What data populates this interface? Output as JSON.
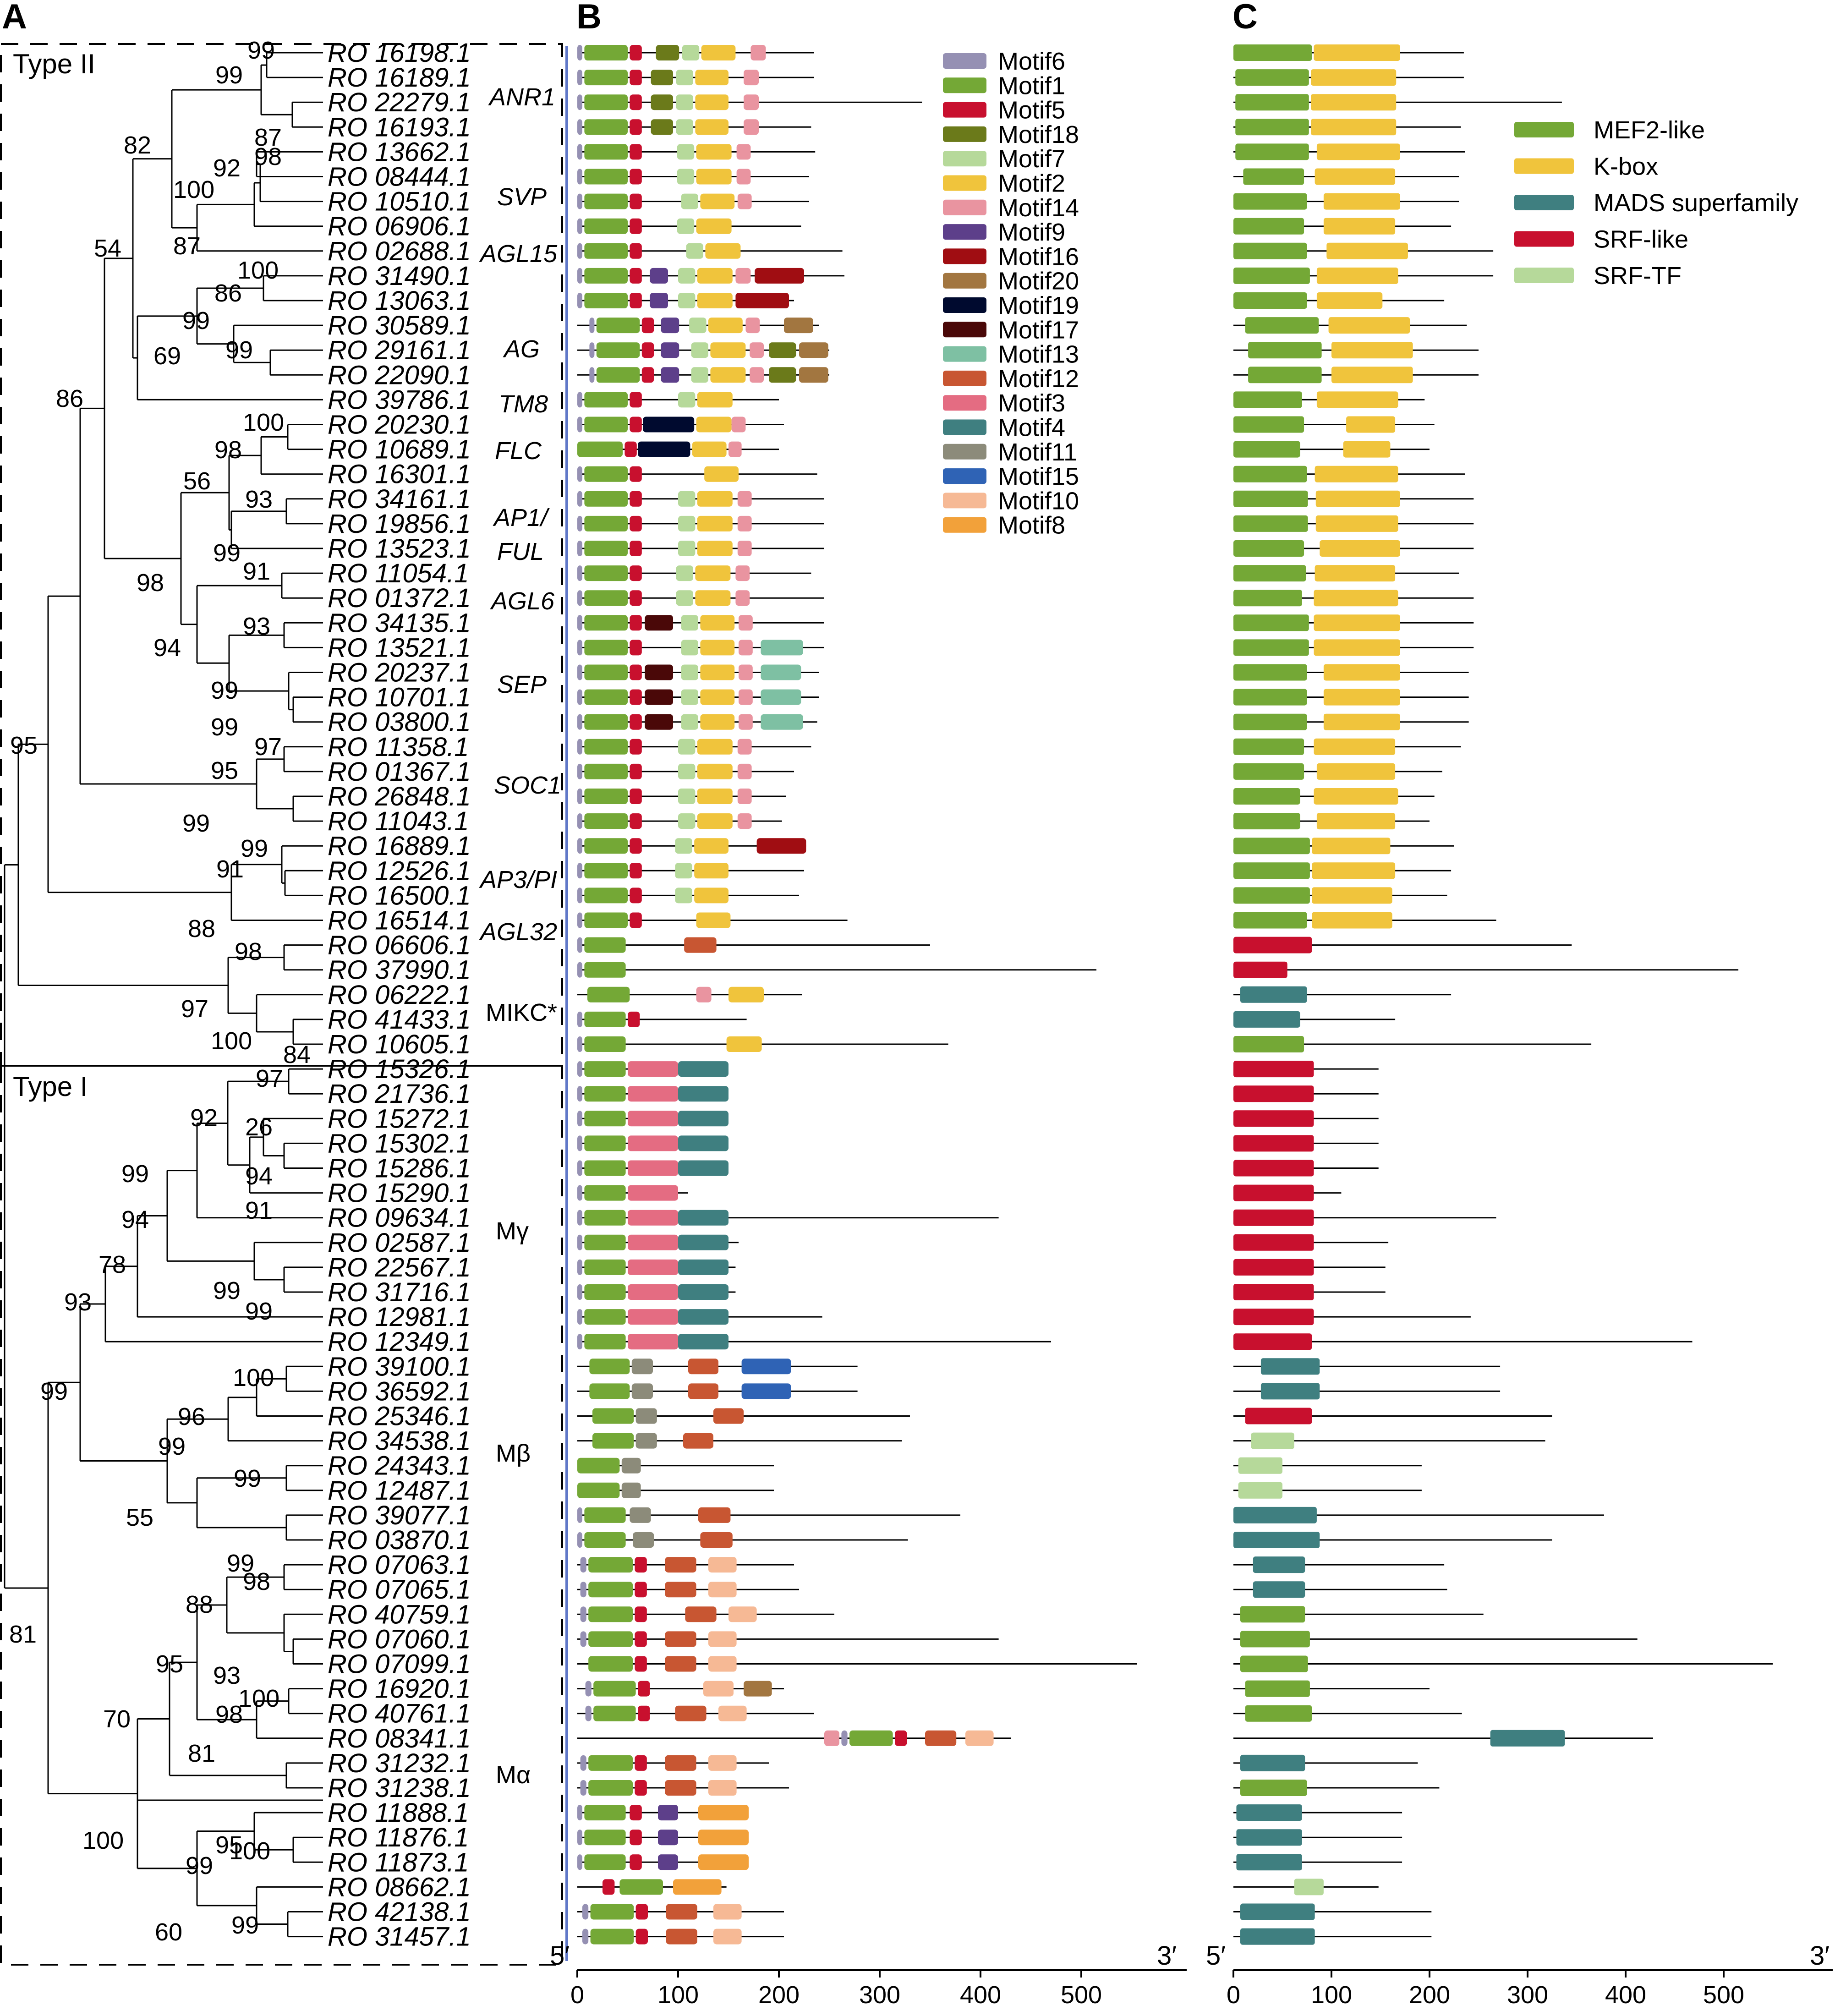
{
  "panels": {
    "a": "A",
    "b": "B",
    "c": "C"
  },
  "types": {
    "type2": "Type II",
    "type1": "Type I"
  },
  "genes": [
    "RO 16198.1",
    "RO 16189.1",
    "RO 22279.1",
    "RO 16193.1",
    "RO 13662.1",
    "RO 08444.1",
    "RO 10510.1",
    "RO 06906.1",
    "RO 02688.1",
    "RO 31490.1",
    "RO 13063.1",
    "RO 30589.1",
    "RO 29161.1",
    "RO 22090.1",
    "RO 39786.1",
    "RO 20230.1",
    "RO 10689.1",
    "RO 16301.1",
    "RO 34161.1",
    "RO 19856.1",
    "RO 13523.1",
    "RO 11054.1",
    "RO 01372.1",
    "RO 34135.1",
    "RO 13521.1",
    "RO 20237.1",
    "RO 10701.1",
    "RO 03800.1",
    "RO 11358.1",
    "RO 01367.1",
    "RO 26848.1",
    "RO 11043.1",
    "RO 16889.1",
    "RO 12526.1",
    "RO 16500.1",
    "RO 16514.1",
    "RO 06606.1",
    "RO 37990.1",
    "RO 06222.1",
    "RO 41433.1",
    "RO 10605.1",
    "RO 15326.1",
    "RO 21736.1",
    "RO 15272.1",
    "RO 15302.1",
    "RO 15286.1",
    "RO 15290.1",
    "RO 09634.1",
    "RO 02587.1",
    "RO 22567.1",
    "RO 31716.1",
    "RO 12981.1",
    "RO 12349.1",
    "RO 39100.1",
    "RO 36592.1",
    "RO 25346.1",
    "RO 34538.1",
    "RO 24343.1",
    "RO 12487.1",
    "RO 39077.1",
    "RO 03870.1",
    "RO 07063.1",
    "RO 07065.1",
    "RO 40759.1",
    "RO 07060.1",
    "RO 07099.1",
    "RO 16920.1",
    "RO 40761.1",
    "RO 08341.1",
    "RO 31232.1",
    "RO 31238.1",
    "RO 11888.1",
    "RO 11876.1",
    "RO 11873.1",
    "RO 08662.1",
    "RO 42138.1",
    "RO 31457.1"
  ],
  "bootstraps": [
    {
      "v": "99"
    },
    {
      "v": "99"
    },
    {
      "v": "87"
    },
    {
      "v": "82"
    },
    {
      "v": "92"
    },
    {
      "v": "98"
    },
    {
      "v": "100"
    },
    {
      "v": "87"
    },
    {
      "v": "54"
    },
    {
      "v": "100"
    },
    {
      "v": "86"
    },
    {
      "v": "99"
    },
    {
      "v": "99"
    },
    {
      "v": "69"
    },
    {
      "v": "86"
    },
    {
      "v": "100"
    },
    {
      "v": "98"
    },
    {
      "v": "56"
    },
    {
      "v": "93"
    },
    {
      "v": "99"
    },
    {
      "v": "98"
    },
    {
      "v": "91"
    },
    {
      "v": "94"
    },
    {
      "v": "93"
    },
    {
      "v": "99"
    },
    {
      "v": "99"
    },
    {
      "v": "95"
    },
    {
      "v": "97"
    },
    {
      "v": "95"
    },
    {
      "v": "99"
    },
    {
      "v": "99"
    },
    {
      "v": "91"
    },
    {
      "v": "88"
    },
    {
      "v": "98"
    },
    {
      "v": "97"
    },
    {
      "v": "100"
    },
    {
      "v": "84"
    },
    {
      "v": "97"
    },
    {
      "v": "92"
    },
    {
      "v": "26"
    },
    {
      "v": "99"
    },
    {
      "v": "94"
    },
    {
      "v": "91"
    },
    {
      "v": "94"
    },
    {
      "v": "78"
    },
    {
      "v": "99"
    },
    {
      "v": "99"
    },
    {
      "v": "93"
    },
    {
      "v": "99"
    },
    {
      "v": "100"
    },
    {
      "v": "96"
    },
    {
      "v": "99"
    },
    {
      "v": "99"
    },
    {
      "v": "55"
    },
    {
      "v": "99"
    },
    {
      "v": "98"
    },
    {
      "v": "88"
    },
    {
      "v": "93"
    },
    {
      "v": "100"
    },
    {
      "v": "95"
    },
    {
      "v": "98"
    },
    {
      "v": "70"
    },
    {
      "v": "81"
    },
    {
      "v": "100"
    },
    {
      "v": "95"
    },
    {
      "v": "99"
    },
    {
      "v": "100"
    },
    {
      "v": "60"
    },
    {
      "v": "99"
    },
    {
      "v": "81"
    }
  ],
  "classes": [
    {
      "t": "ANR1",
      "it": true
    },
    {
      "t": "SVP",
      "it": true
    },
    {
      "t": "AGL15",
      "it": true
    },
    {
      "t": "AG",
      "it": true
    },
    {
      "t": "TM8",
      "it": true
    },
    {
      "t": "FLC",
      "it": true
    },
    {
      "t": "AP1/",
      "it": true
    },
    {
      "t": "FUL",
      "it": true
    },
    {
      "t": "AGL6",
      "it": true
    },
    {
      "t": "SEP",
      "it": true
    },
    {
      "t": "SOC1",
      "it": true
    },
    {
      "t": "AP3/PI",
      "it": true
    },
    {
      "t": "AGL32",
      "it": true
    },
    {
      "t": "MIKC*",
      "it": false
    },
    {
      "t": "Mγ",
      "it": false
    },
    {
      "t": "Mβ",
      "it": false
    },
    {
      "t": "Mα",
      "it": false
    }
  ],
  "motif_legend": [
    {
      "name": "Motif6",
      "color": "#9590b3"
    },
    {
      "name": "Motif1",
      "color": "#74a836"
    },
    {
      "name": "Motif5",
      "color": "#c8102e"
    },
    {
      "name": "Motif18",
      "color": "#6b7a1a"
    },
    {
      "name": "Motif7",
      "color": "#b6d99a"
    },
    {
      "name": "Motif2",
      "color": "#f0c43c"
    },
    {
      "name": "Motif14",
      "color": "#e994a0"
    },
    {
      "name": "Motif9",
      "color": "#5d3f8a"
    },
    {
      "name": "Motif16",
      "color": "#a00d12"
    },
    {
      "name": "Motif20",
      "color": "#a27640"
    },
    {
      "name": "Motif19",
      "color": "#000a2f"
    },
    {
      "name": "Motif17",
      "color": "#4a0808"
    },
    {
      "name": "Motif13",
      "color": "#7ec0a3"
    },
    {
      "name": "Motif12",
      "color": "#c85632"
    },
    {
      "name": "Motif3",
      "color": "#e46c82"
    },
    {
      "name": "Motif4",
      "color": "#3f7f80"
    },
    {
      "name": "Motif11",
      "color": "#8c8b7a"
    },
    {
      "name": "Motif15",
      "color": "#2f63b5"
    },
    {
      "name": "Motif10",
      "color": "#f6b995"
    },
    {
      "name": "Motif8",
      "color": "#f2a13a"
    }
  ],
  "domain_legend": [
    {
      "name": "MEF2-like",
      "color": "#74a836"
    },
    {
      "name": "K-box",
      "color": "#f0c43c"
    },
    {
      "name": "MADS superfamily",
      "color": "#3f7f80"
    },
    {
      "name": "SRF-like",
      "color": "#c8102e"
    },
    {
      "name": "SRF-TF",
      "color": "#b6d99a"
    }
  ],
  "axis": {
    "ticks": [
      "0",
      "100",
      "200",
      "300",
      "400",
      "500"
    ],
    "start": "5′",
    "end": "3′"
  }
}
